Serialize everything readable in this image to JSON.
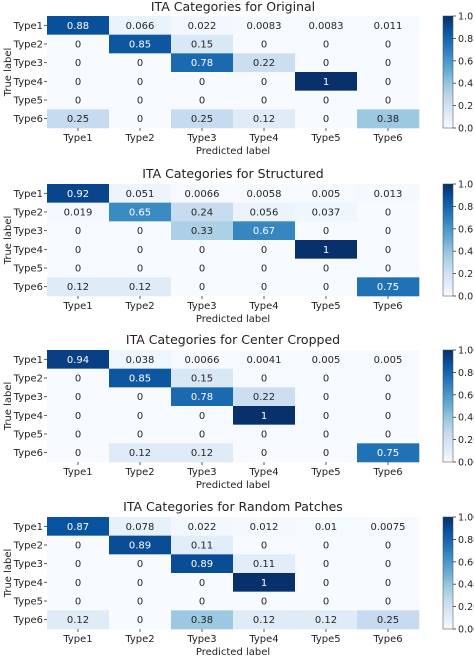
{
  "chart_data": [
    {
      "type": "heatmap",
      "title": "ITA Categories for Original",
      "xlabel": "Predicted label",
      "ylabel": "True label",
      "categories": [
        "Type1",
        "Type2",
        "Type3",
        "Type4",
        "Type5",
        "Type6"
      ],
      "values": [
        [
          "0.88",
          "0.066",
          "0.022",
          "0.0083",
          "0.0083",
          "0.011"
        ],
        [
          "0",
          "0.85",
          "0.15",
          "0",
          "0",
          "0"
        ],
        [
          "0",
          "0",
          "0.78",
          "0.22",
          "0",
          "0"
        ],
        [
          "0",
          "0",
          "0",
          "0",
          "1",
          "0"
        ],
        [
          "0",
          "0",
          "0",
          "0",
          "0",
          "0"
        ],
        [
          "0.25",
          "0",
          "0.25",
          "0.12",
          "0",
          "0.38"
        ]
      ],
      "colorbar_ticks": [
        "0.0",
        "0.2",
        "0.4",
        "0.6",
        "0.8",
        "1.0"
      ]
    },
    {
      "type": "heatmap",
      "title": "ITA Categories for Structured",
      "xlabel": "Predicted label",
      "ylabel": "True label",
      "categories": [
        "Type1",
        "Type2",
        "Type3",
        "Type4",
        "Type5",
        "Type6"
      ],
      "values": [
        [
          "0.92",
          "0.051",
          "0.0066",
          "0.0058",
          "0.005",
          "0.013"
        ],
        [
          "0.019",
          "0.65",
          "0.24",
          "0.056",
          "0.037",
          "0"
        ],
        [
          "0",
          "0",
          "0.33",
          "0.67",
          "0",
          "0"
        ],
        [
          "0",
          "0",
          "0",
          "0",
          "1",
          "0"
        ],
        [
          "0",
          "0",
          "0",
          "0",
          "0",
          "0"
        ],
        [
          "0.12",
          "0.12",
          "0",
          "0",
          "0",
          "0.75"
        ]
      ],
      "colorbar_ticks": [
        "0.0",
        "0.2",
        "0.4",
        "0.6",
        "0.8",
        "1.0"
      ]
    },
    {
      "type": "heatmap",
      "title": "ITA Categories for Center Cropped",
      "xlabel": "Predicted label",
      "ylabel": "True label",
      "categories": [
        "Type1",
        "Type2",
        "Type3",
        "Type4",
        "Type5",
        "Type6"
      ],
      "values": [
        [
          "0.94",
          "0.038",
          "0.0066",
          "0.0041",
          "0.005",
          "0.005"
        ],
        [
          "0",
          "0.85",
          "0.15",
          "0",
          "0",
          "0"
        ],
        [
          "0",
          "0",
          "0.78",
          "0.22",
          "0",
          "0"
        ],
        [
          "0",
          "0",
          "0",
          "1",
          "0",
          "0"
        ],
        [
          "0",
          "0",
          "0",
          "0",
          "0",
          "0"
        ],
        [
          "0",
          "0.12",
          "0.12",
          "0",
          "0",
          "0.75"
        ]
      ],
      "colorbar_ticks": [
        "0.00",
        "0.20",
        "0.40",
        "0.60",
        "0.80",
        "1.00"
      ]
    },
    {
      "type": "heatmap",
      "title": "ITA Categories for Random Patches",
      "xlabel": "Predicted label",
      "ylabel": "True label",
      "categories": [
        "Type1",
        "Type2",
        "Type3",
        "Type4",
        "Type5",
        "Type6"
      ],
      "values": [
        [
          "0.87",
          "0.078",
          "0.022",
          "0.012",
          "0.01",
          "0.0075"
        ],
        [
          "0",
          "0.89",
          "0.11",
          "0",
          "0",
          "0"
        ],
        [
          "0",
          "0",
          "0.89",
          "0.11",
          "0",
          "0"
        ],
        [
          "0",
          "0",
          "0",
          "1",
          "0",
          "0"
        ],
        [
          "0",
          "0",
          "0",
          "0",
          "0",
          "0"
        ],
        [
          "0.12",
          "0",
          "0.38",
          "0.12",
          "0.12",
          "0.25"
        ]
      ],
      "colorbar_ticks": [
        "0.00",
        "0.20",
        "0.40",
        "0.60",
        "0.80",
        "1.00"
      ]
    }
  ]
}
